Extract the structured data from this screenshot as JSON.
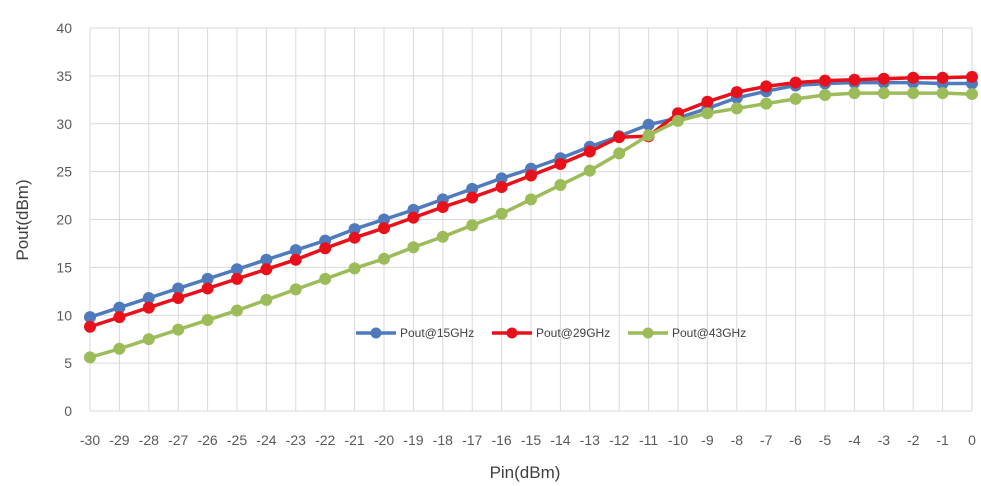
{
  "chart_data": {
    "type": "line",
    "title": "",
    "xlabel": "Pin(dBm)",
    "ylabel": "Pout(dBm)",
    "x": [
      -30,
      -29,
      -28,
      -27,
      -26,
      -25,
      -24,
      -23,
      -22,
      -21,
      -20,
      -19,
      -18,
      -17,
      -16,
      -15,
      -14,
      -13,
      -12,
      -11,
      -10,
      -9,
      -8,
      -7,
      -6,
      -5,
      -4,
      -3,
      -2,
      -1,
      0
    ],
    "ylim": [
      0,
      40
    ],
    "yticks": [
      0,
      5,
      10,
      15,
      20,
      25,
      30,
      35,
      40
    ],
    "grid": true,
    "legend": "center",
    "series": [
      {
        "name": "Pout@15GHz",
        "color": "#4f7bbd",
        "values": [
          9.8,
          10.8,
          11.8,
          12.8,
          13.8,
          14.8,
          15.8,
          16.8,
          17.8,
          19.0,
          20.0,
          21.0,
          22.1,
          23.2,
          24.3,
          25.3,
          26.4,
          27.6,
          28.7,
          29.9,
          30.6,
          31.6,
          32.7,
          33.4,
          34.0,
          34.2,
          34.3,
          34.3,
          34.3,
          34.2,
          34.2
        ],
        "values_note": ""
      },
      {
        "name": "Pout@29GHz",
        "color": "#e8111b",
        "values": [
          8.8,
          9.8,
          10.8,
          11.8,
          12.8,
          13.8,
          14.8,
          15.8,
          17.0,
          18.1,
          19.1,
          20.2,
          21.3,
          22.3,
          23.4,
          24.6,
          25.8,
          27.1,
          28.6,
          28.7,
          31.1,
          32.3,
          33.3,
          33.9,
          34.3,
          34.5,
          34.6,
          34.7,
          34.8,
          34.8,
          34.9
        ]
      },
      {
        "name": "Pout@43GHz",
        "color": "#9cbc59",
        "values": [
          5.6,
          6.5,
          7.5,
          8.5,
          9.5,
          10.5,
          11.6,
          12.7,
          13.8,
          14.9,
          15.9,
          17.1,
          18.2,
          19.4,
          20.6,
          22.1,
          23.6,
          25.1,
          26.9,
          28.8,
          30.3,
          31.1,
          31.6,
          32.1,
          32.6,
          33.0,
          33.2,
          33.2,
          33.2,
          33.2,
          33.1
        ]
      }
    ]
  }
}
